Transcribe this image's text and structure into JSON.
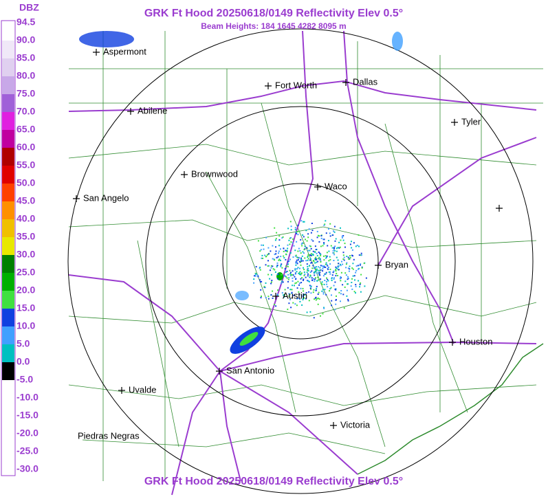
{
  "header": {
    "title": "GRK Ft Hood 20250618/0149 Reflectivity Elev 0.5°",
    "subtitle": "Beam Heights: 184 1645 4282 8095 m"
  },
  "footer": {
    "title": "GRK Ft Hood 20250618/0149 Reflectivity Elev 0.5°"
  },
  "legend": {
    "unit": "DBZ",
    "labels": [
      "94.5",
      "90.0",
      "85.0",
      "80.0",
      "75.0",
      "70.0",
      "65.0",
      "60.0",
      "55.0",
      "50.0",
      "45.0",
      "40.0",
      "35.0",
      "30.0",
      "25.0",
      "20.0",
      "15.0",
      "10.0",
      "5.0",
      "0.0",
      "-5.0",
      "-10.0",
      "-15.0",
      "-20.0",
      "-25.0",
      "-30.0"
    ],
    "colors": [
      "#ffffff",
      "#f0e8f8",
      "#e0d0f0",
      "#c8a8e8",
      "#a060d8",
      "#e020e0",
      "#c000a0",
      "#b00000",
      "#e00000",
      "#ff4000",
      "#ff9000",
      "#f0c000",
      "#e8e800",
      "#008000",
      "#00b000",
      "#40e040",
      "#1040e0",
      "#40a0ff",
      "#00c0c0",
      "#000000",
      "#ffffff",
      "#ffffff",
      "#ffffff",
      "#ffffff",
      "#ffffff"
    ]
  },
  "map": {
    "cities": [
      "Aspermont",
      "Fort Worth",
      "Dallas",
      "Abilene",
      "Tyler",
      "Brownwood",
      "Waco",
      "San Angelo",
      "Bryan",
      "Austin",
      "Houston",
      "San Antonio",
      "Uvalde",
      "Victoria",
      "Piedras Negras"
    ]
  }
}
